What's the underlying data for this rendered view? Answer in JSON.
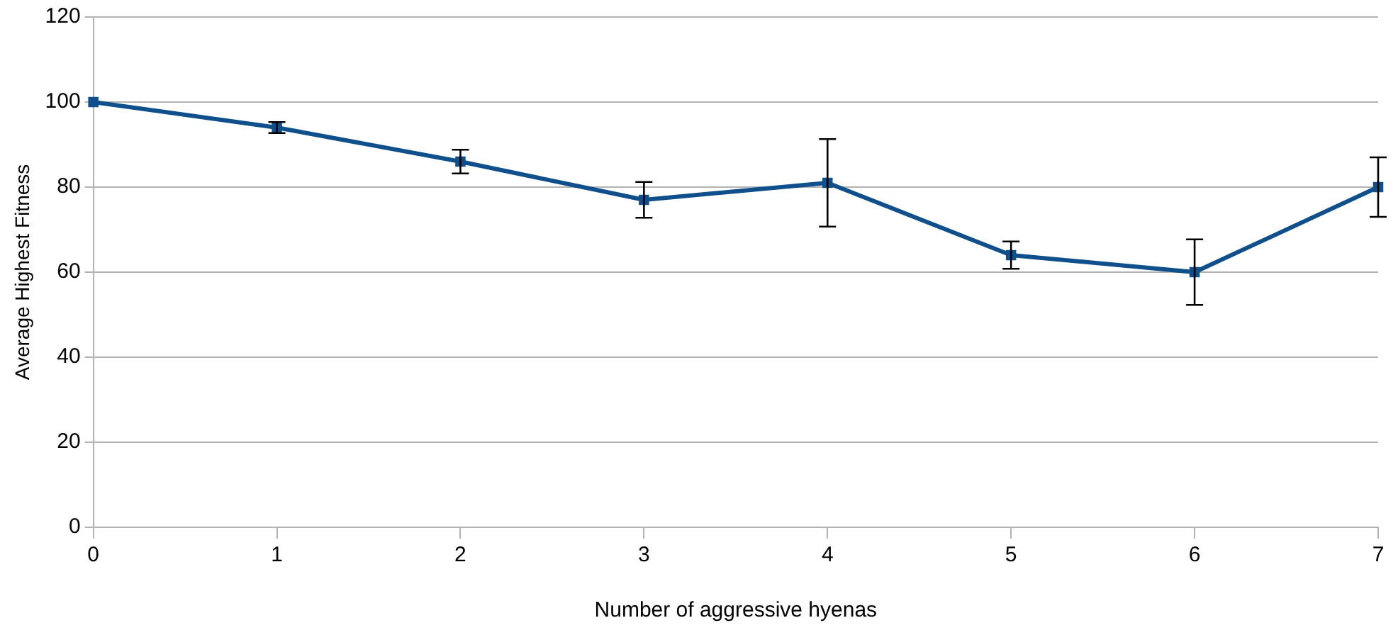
{
  "chart_data": {
    "type": "line",
    "xlabel": "Number of aggressive hyenas",
    "ylabel": "Average Highest Fitness",
    "x": [
      0,
      1,
      2,
      3,
      4,
      5,
      6,
      7
    ],
    "series": [
      {
        "color": "#0e4f8c",
        "values": [
          100,
          94,
          86,
          77,
          81,
          64,
          60,
          80
        ],
        "errors": [
          null,
          1.3,
          2.8,
          4.2,
          10.3,
          3.2,
          7.7,
          7
        ]
      }
    ],
    "xlim": [
      0,
      7
    ],
    "xticks": [
      0,
      1,
      2,
      3,
      4,
      5,
      6,
      7
    ],
    "ylim": [
      0,
      120
    ],
    "yticks": [
      0,
      20,
      40,
      60,
      80,
      100,
      120
    ],
    "grid": "y",
    "legend": false,
    "marker": "square",
    "line_style": "solid"
  }
}
